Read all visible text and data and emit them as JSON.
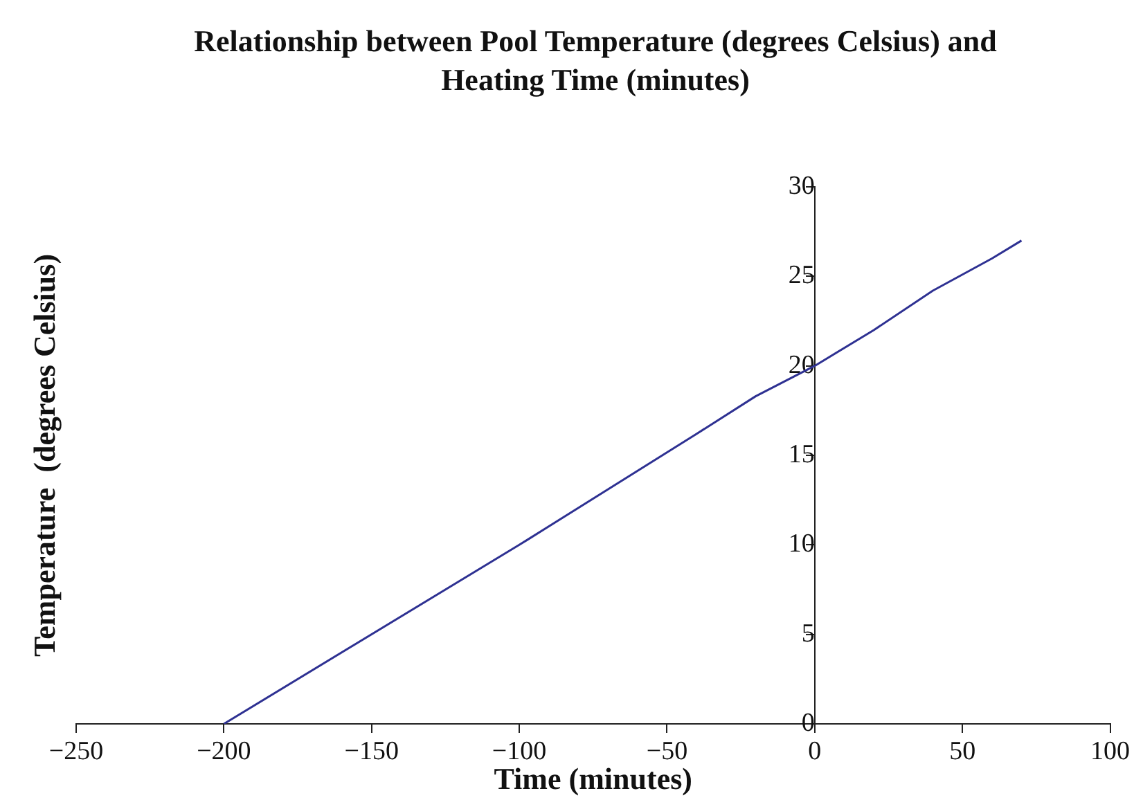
{
  "chart_data": {
    "type": "line",
    "title": "Relationship between Pool Temperature (degrees Celsius) and Heating Time (minutes)",
    "xlabel": "Time (minutes)",
    "ylabel": "Temperature  (degrees Celsius)",
    "series": [
      {
        "color": "#2e3192",
        "x": [
          -200,
          -100,
          -40,
          -20,
          0,
          20,
          40,
          60,
          70
        ],
        "values": [
          0,
          10,
          16.2,
          18.3,
          20,
          22,
          24.2,
          26,
          27
        ]
      }
    ],
    "xlim": [
      -250,
      100
    ],
    "xticks": [
      -250,
      -200,
      -150,
      -100,
      -50,
      0,
      50,
      100
    ],
    "ylim": [
      0,
      30
    ],
    "yticks": [
      0,
      5,
      10,
      15,
      20,
      25,
      30
    ],
    "grid": false,
    "legend": false,
    "marker": "none",
    "line_style": "solid"
  }
}
